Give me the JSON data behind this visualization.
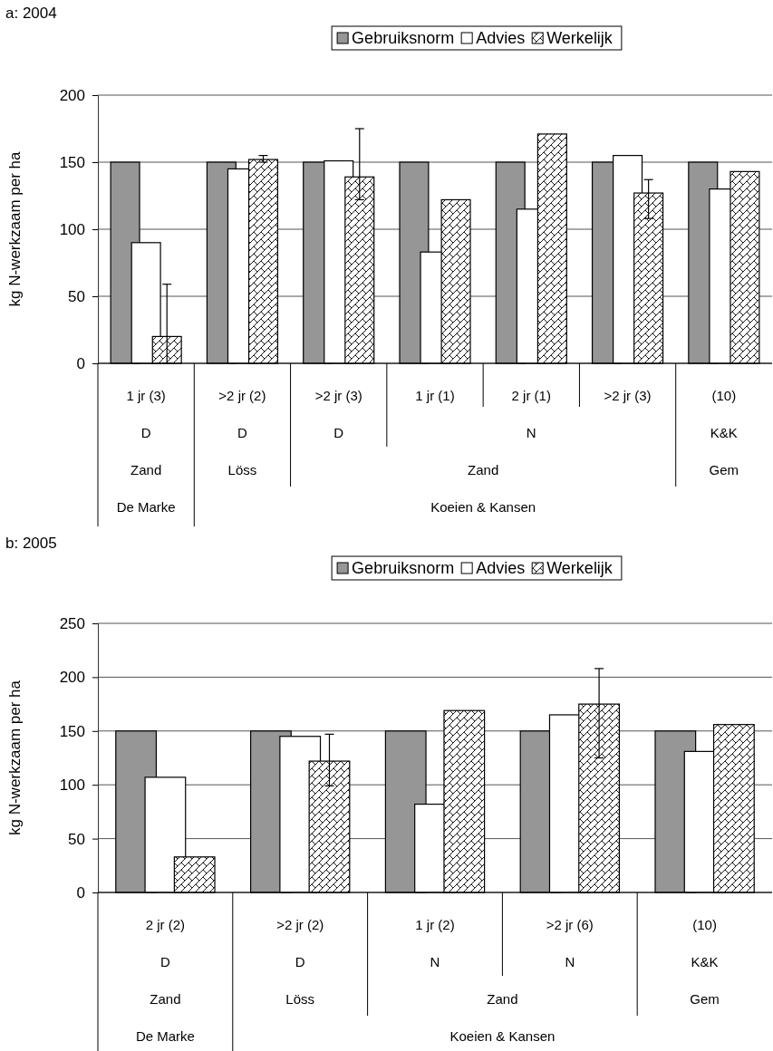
{
  "chart_data": [
    {
      "type": "bar",
      "title": "a: 2004",
      "ylabel": "kg N-werkzaam per ha",
      "categories": [
        "1 jr (3)",
        ">2 jr (2)",
        ">2 jr (3)",
        "1 jr (1)",
        "2 jr (1)",
        ">2 jr (3)",
        "(10)"
      ],
      "series": [
        {
          "name": "Gebruiksnorm",
          "color": "#969696",
          "values": [
            150,
            150,
            150,
            150,
            150,
            150,
            150
          ]
        },
        {
          "name": "Advies",
          "color": "#ffffff",
          "values": [
            90,
            145,
            151,
            83,
            115,
            155,
            130
          ]
        },
        {
          "name": "Werkelijk",
          "color": "#000000",
          "values": [
            20,
            152,
            139,
            122,
            171,
            127,
            143
          ],
          "errors": [
            [
              0,
              59
            ],
            [
              150,
              155
            ],
            [
              122,
              175
            ],
            null,
            null,
            [
              108,
              137
            ],
            null
          ]
        }
      ],
      "ylim": [
        0,
        200
      ],
      "yticks": [
        0,
        50,
        100,
        150,
        200
      ],
      "grid": "y",
      "legend": "top",
      "annotations": [
        "D",
        "D",
        "D",
        "N",
        "K&K",
        "Zand",
        "Löss",
        "Zand",
        "Gem",
        "De Marke",
        "Koeien & Kansen"
      ]
    },
    {
      "type": "bar",
      "title": "b: 2005",
      "ylabel": "kg N-werkzaam per ha",
      "categories": [
        "2 jr (2)",
        ">2 jr (2)",
        "1 jr (2)",
        ">2 jr (6)",
        "(10)"
      ],
      "series": [
        {
          "name": "Gebruiksnorm",
          "color": "#969696",
          "values": [
            150,
            150,
            150,
            150,
            150
          ]
        },
        {
          "name": "Advies",
          "color": "#ffffff",
          "values": [
            107,
            145,
            82,
            165,
            131
          ]
        },
        {
          "name": "Werkelijk",
          "color": "#000000",
          "values": [
            33,
            122,
            169,
            175,
            156
          ],
          "errors": [
            null,
            [
              99,
              147
            ],
            null,
            [
              125,
              208
            ],
            null
          ]
        }
      ],
      "ylim": [
        0,
        250
      ],
      "yticks": [
        0,
        50,
        100,
        150,
        200,
        250
      ],
      "grid": "y",
      "legend": "top",
      "annotations": [
        "D",
        "D",
        "N",
        "N",
        "K&K",
        "Zand",
        "Löss",
        "Zand",
        "Gem",
        "De Marke",
        "Koeien & Kansen"
      ]
    }
  ]
}
